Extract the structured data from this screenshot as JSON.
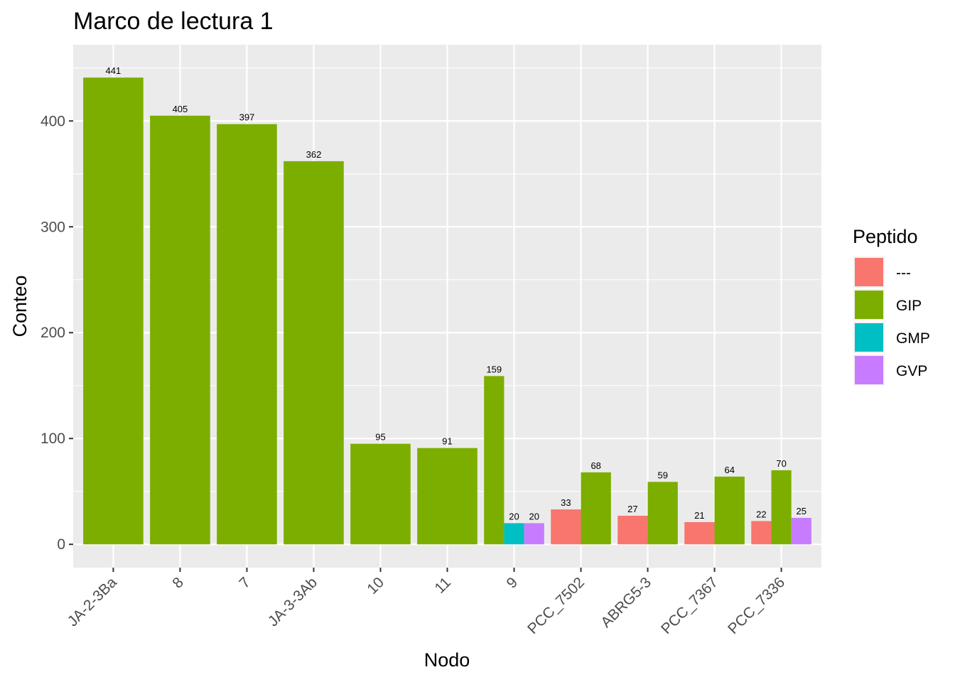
{
  "chart_data": {
    "type": "bar",
    "title": "Marco de lectura 1",
    "xlabel": "Nodo",
    "ylabel": "Conteo",
    "ylim": [
      -22,
      472
    ],
    "yticks": [
      0,
      100,
      200,
      300,
      400
    ],
    "grid": true,
    "legend": {
      "title": "Peptido",
      "position": "right",
      "entries": [
        {
          "name": "---",
          "color": "#F8766D"
        },
        {
          "name": "GIP",
          "color": "#7CAE00"
        },
        {
          "name": "GMP",
          "color": "#00BFC4"
        },
        {
          "name": "GVP",
          "color": "#C77CFF"
        }
      ]
    },
    "categories": [
      "JA-2-3Ba",
      "8",
      "7",
      "JA-3-3Ab",
      "10",
      "11",
      "9",
      "PCC_7502",
      "ABRG5-3",
      "PCC_7367",
      "PCC_7336"
    ],
    "series": [
      {
        "name": "---",
        "values": [
          null,
          null,
          null,
          null,
          null,
          null,
          null,
          33,
          27,
          21,
          22
        ]
      },
      {
        "name": "GIP",
        "values": [
          441,
          405,
          397,
          362,
          95,
          91,
          159,
          68,
          59,
          64,
          70
        ]
      },
      {
        "name": "GMP",
        "values": [
          null,
          null,
          null,
          null,
          null,
          null,
          20,
          null,
          null,
          null,
          null
        ]
      },
      {
        "name": "GVP",
        "values": [
          null,
          null,
          null,
          null,
          null,
          null,
          20,
          null,
          null,
          null,
          25
        ]
      }
    ]
  }
}
